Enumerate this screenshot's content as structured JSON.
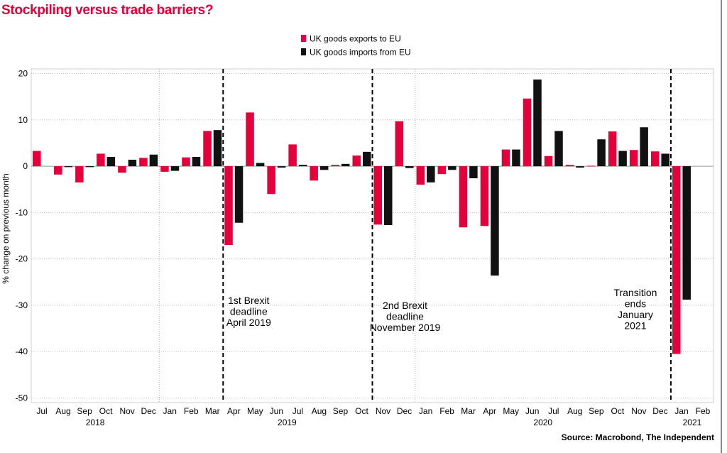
{
  "title": "Stockpiling versus trade barriers?",
  "source": "Source: Macrobond, The Independent",
  "colors": {
    "exports": "#e4003b",
    "imports": "#111111",
    "title": "#e4003b"
  },
  "chart_data": {
    "type": "bar",
    "ylabel": "% change on previous month",
    "ylim": [
      -51,
      21
    ],
    "yticks": [
      20,
      10,
      0,
      -10,
      -20,
      -30,
      -40,
      -50
    ],
    "grid": true,
    "legend_position": "top-center",
    "categories": [
      "Jul",
      "Aug",
      "Sep",
      "Oct",
      "Nov",
      "Dec",
      "Jan",
      "Feb",
      "Mar",
      "Apr",
      "May",
      "Jun",
      "Jul",
      "Aug",
      "Sep",
      "Oct",
      "Nov",
      "Dec",
      "Jan",
      "Feb",
      "Mar",
      "Apr",
      "May",
      "Jun",
      "Jul",
      "Aug",
      "Sep",
      "Oct",
      "Nov",
      "Dec",
      "Jan",
      "Feb"
    ],
    "year_labels": [
      {
        "label": "2018",
        "start": 0,
        "end": 5
      },
      {
        "label": "2019",
        "start": 6,
        "end": 17
      },
      {
        "label": "2020",
        "start": 18,
        "end": 29
      },
      {
        "label": "2021",
        "start": 30,
        "end": 31
      }
    ],
    "series": [
      {
        "name": "UK goods exports to EU",
        "values": [
          3.3,
          -1.8,
          -3.5,
          2.7,
          -1.4,
          1.8,
          -1.2,
          1.9,
          7.6,
          -17.0,
          11.6,
          -6.0,
          4.7,
          -3.1,
          0.3,
          2.3,
          -12.6,
          9.7,
          -4.0,
          -1.7,
          -13.2,
          -12.9,
          3.6,
          14.6,
          2.2,
          0.3,
          0.1,
          7.5,
          3.5,
          3.2,
          -40.5,
          null
        ]
      },
      {
        "name": "UK goods imports from EU",
        "values": [
          null,
          -0.2,
          -0.2,
          2.0,
          1.4,
          2.5,
          -1.0,
          2.0,
          7.8,
          -12.2,
          0.7,
          -0.3,
          0.3,
          -0.8,
          0.5,
          3.1,
          -12.7,
          -0.4,
          -3.5,
          -0.8,
          -2.6,
          -23.6,
          3.6,
          18.7,
          7.6,
          -0.3,
          5.8,
          3.3,
          8.4,
          2.7,
          -28.8,
          null
        ]
      }
    ],
    "events": [
      {
        "after_index": 8,
        "lines": [
          "1st Brexit",
          "deadline",
          "April 2019"
        ]
      },
      {
        "after_index": 15,
        "lines": [
          "2nd Brexit",
          "deadline",
          "November 2019"
        ]
      },
      {
        "after_index": 29,
        "lines": [
          "Transition",
          "ends",
          "January",
          "2021"
        ]
      }
    ],
    "year_separators_after": [
      5,
      17
    ]
  }
}
